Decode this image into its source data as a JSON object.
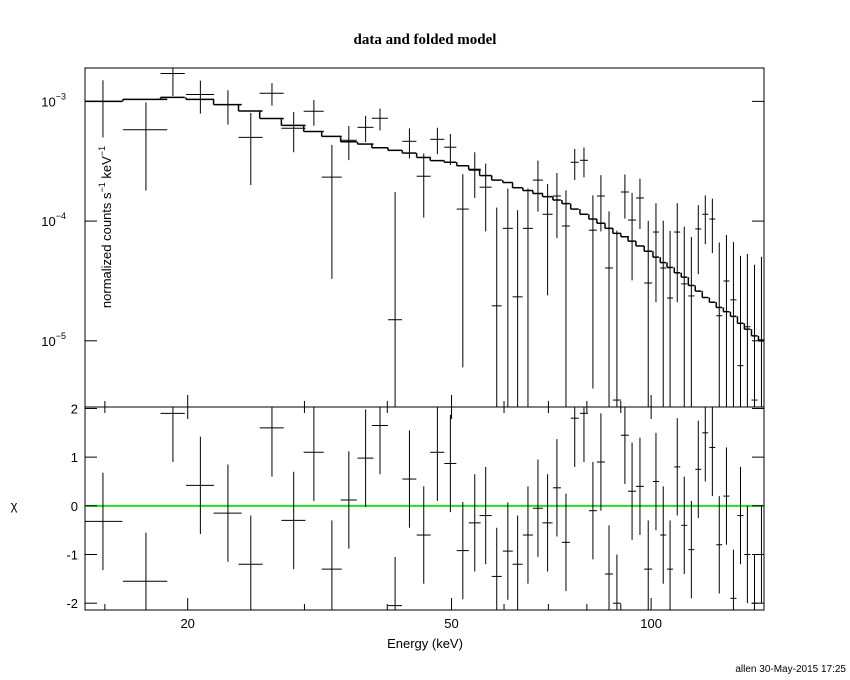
{
  "chart_data": {
    "type": "xspec",
    "title": "data and folded model",
    "xlabel": "Energy (keV)",
    "ylabel_parts": [
      "normalized counts s",
      "−1",
      " keV",
      "−1"
    ],
    "chi_label": "χ",
    "footer": "allen 30-May-2015 17:25",
    "xlog": true,
    "ylog": true,
    "xlim": [
      14,
      148
    ],
    "xticks": [
      20,
      50,
      100
    ],
    "xminor": [
      15,
      30,
      40,
      60,
      70,
      80,
      90
    ],
    "ylim": [
      2.8e-06,
      0.0019
    ],
    "yticks": [
      {
        "value": 0.001,
        "label": "10",
        "exponent": "−3"
      },
      {
        "value": 0.0001,
        "label": "10",
        "exponent": "−4"
      },
      {
        "value": 1e-05,
        "label": "10",
        "exponent": "−5"
      }
    ],
    "chi_lim": [
      -2.14,
      2.03
    ],
    "chi_ticks": [
      2,
      1,
      0,
      -1,
      -2
    ],
    "chi_err": 1,
    "ref_line": 0,
    "ref_color": "#22dd22",
    "color": "#000000",
    "x": [
      14.9,
      17.3,
      19.0,
      20.9,
      23.0,
      24.9,
      26.8,
      28.9,
      31.0,
      33.0,
      35.0,
      37.1,
      39.0,
      41.1,
      43.2,
      45.4,
      47.6,
      49.8,
      52.0,
      54.2,
      56.3,
      58.5,
      60.8,
      62.9,
      65.2,
      67.5,
      69.8,
      72.1,
      74.4,
      76.7,
      79.2,
      81.7,
      84.0,
      86.4,
      88.8,
      91.3,
      93.6,
      96.2,
      99.0,
      101.7,
      104.3,
      106.8,
      109.5,
      112.2,
      115.0,
      117.8,
      120.7,
      123.7,
      126.7,
      129.9,
      133.1,
      136.4,
      139.7,
      143.2,
      146.7
    ],
    "xerr": [
      1.04,
      1.33,
      0.8,
      1.02,
      1.12,
      1.04,
      1.12,
      1.21,
      1.08,
      1.15,
      0.98,
      1.03,
      1.09,
      1.0,
      1.05,
      1.11,
      1.16,
      1.04,
      1.09,
      1.13,
      1.18,
      1.02,
      1.06,
      1.1,
      1.14,
      1.18,
      1.22,
      1.0,
      1.04,
      1.07,
      1.1,
      1.14,
      1.17,
      1.2,
      1.24,
      1.27,
      1.3,
      1.34,
      1.38,
      1.06,
      1.09,
      1.12,
      1.14,
      1.17,
      1.2,
      1.23,
      1.26,
      1.29,
      1.32,
      1.36,
      1.39,
      1.43,
      1.46,
      1.5,
      1.53
    ],
    "y": [
      0.001,
      0.00058,
      0.00171,
      0.00114,
      0.00094,
      0.0005,
      0.00117,
      0.000596,
      0.000826,
      0.000233,
      0.000473,
      0.000607,
      0.000722,
      1.5e-05,
      0.000464,
      0.000237,
      0.000482,
      0.000414,
      0.000126,
      0.000266,
      0.000192,
      1.96e-05,
      8.7e-05,
      2.33e-05,
      8.7e-05,
      0.00022,
      0.000114,
      0.000162,
      9.1e-05,
      0.00031,
      0.000322,
      8.4e-05,
      0.000162,
      4.06e-05,
      3.2e-06,
      0.000175,
      0.000102,
      0.000156,
      3.04e-05,
      8.1e-05,
      4.06e-05,
      2.28e-05,
      8.1e-05,
      2.99e-05,
      2.37e-05,
      8.6e-05,
      0.000114,
      0.000104,
      1.62e-05,
      3.16e-05,
      2.2e-05,
      6.2e-06,
      1.31e-05,
      3.2e-06,
      1.02e-05
    ],
    "yerr": [
      0.0005,
      0.0004,
      0.0006,
      0.00035,
      0.0003,
      0.0003,
      0.00025,
      0.00022,
      0.0002,
      0.0002,
      0.00015,
      0.00015,
      0.00015,
      0.00016,
      0.00013,
      0.00013,
      0.00012,
      0.00012,
      0.00012,
      0.00011,
      0.00011,
      0.00011,
      0.0001,
      0.0001,
      0.0001,
      0.0001,
      9e-05,
      9e-05,
      9e-05,
      9e-05,
      9e-05,
      8e-05,
      8e-05,
      8e-05,
      8e-05,
      7e-05,
      7e-05,
      7e-05,
      7e-05,
      6e-05,
      6e-05,
      6e-05,
      6e-05,
      6e-05,
      5e-05,
      5e-05,
      5e-05,
      5e-05,
      5e-05,
      4.5e-05,
      4.5e-05,
      4.5e-05,
      4e-05,
      4e-05,
      4e-05
    ],
    "model": [
      0.001,
      0.00104,
      0.00108,
      0.00104,
      0.00094,
      0.00083,
      0.00072,
      0.00063,
      0.00056,
      0.00051,
      0.00046,
      0.00044,
      0.00041,
      0.00039,
      0.00037,
      0.00034,
      0.00032,
      0.00031,
      0.00029,
      0.00027,
      0.00024,
      0.00022,
      0.00021,
      0.00019,
      0.00018,
      0.00017,
      0.00016,
      0.00015,
      0.00014,
      0.000126,
      0.000114,
      0.000104,
      9.6e-05,
      8.7e-05,
      7.9e-05,
      7.4e-05,
      6.8e-05,
      6.2e-05,
      5.6e-05,
      5e-05,
      4.5e-05,
      4.1e-05,
      3.7e-05,
      3.4e-05,
      2.9e-05,
      2.6e-05,
      2.3e-05,
      2.1e-05,
      1.9e-05,
      1.75e-05,
      1.6e-05,
      1.4e-05,
      1.25e-05,
      1.1e-05,
      1e-05
    ],
    "chi": [
      -0.32,
      -1.55,
      1.9,
      0.42,
      -0.15,
      -1.2,
      1.6,
      -0.3,
      1.1,
      -1.3,
      0.12,
      0.98,
      1.65,
      -2.05,
      0.55,
      -0.6,
      1.1,
      0.87,
      -0.92,
      -0.35,
      -0.2,
      -1.45,
      -0.93,
      -1.2,
      -0.6,
      -0.05,
      -0.35,
      0.37,
      -0.75,
      1.8,
      1.9,
      -0.1,
      0.9,
      -1.4,
      -2.0,
      1.45,
      0.3,
      0.4,
      -1.3,
      0.5,
      -0.6,
      -1.3,
      0.8,
      -0.4,
      -0.9,
      0.75,
      1.5,
      1.2,
      -0.8,
      0.2,
      -1.9,
      -0.2,
      -1.0,
      -2.0,
      -1.0
    ]
  }
}
